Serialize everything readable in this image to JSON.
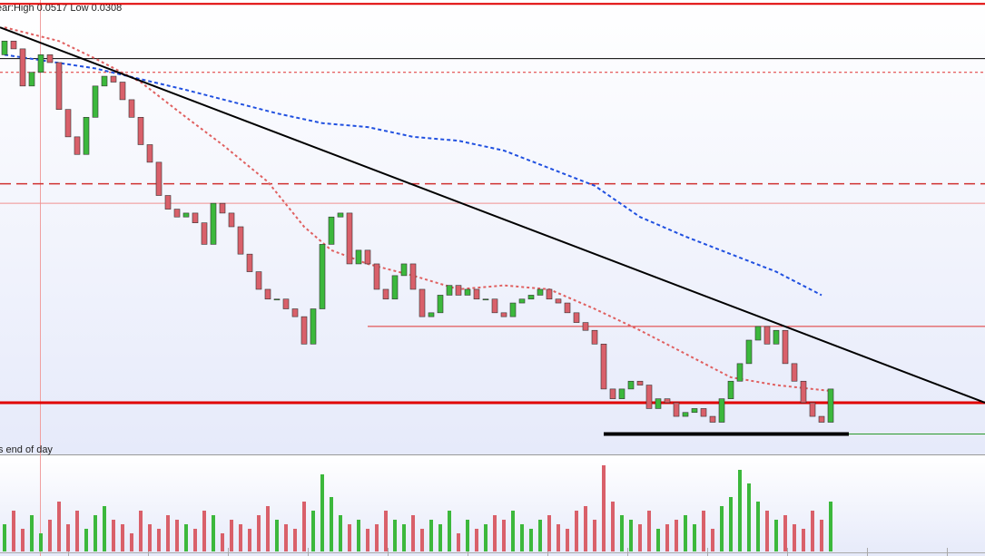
{
  "chart_data": {
    "type": "candlestick",
    "header_text": "ear:High 0.0517 Low 0.0308",
    "footer_text": "s end of day",
    "ylim": [
      0.0298,
      0.053
    ],
    "color_up": "#3cb83c",
    "color_down": "#d9606a",
    "open": [
      0.0502,
      0.0509,
      0.0505,
      0.0486,
      0.0493,
      0.0502,
      0.0498,
      0.0474,
      0.046,
      0.0451,
      0.047,
      0.0486,
      0.0491,
      0.0488,
      0.0479,
      0.047,
      0.0456,
      0.0447,
      0.043,
      0.0423,
      0.0419,
      0.0421,
      0.0416,
      0.0405,
      0.0426,
      0.0421,
      0.0414,
      0.04,
      0.0391,
      0.0382,
      0.0377,
      0.0377,
      0.0372,
      0.0368,
      0.0354,
      0.0372,
      0.0405,
      0.0419,
      0.0421,
      0.0395,
      0.0402,
      0.0395,
      0.0382,
      0.0377,
      0.0389,
      0.0395,
      0.0382,
      0.0368,
      0.037,
      0.0379,
      0.0384,
      0.0379,
      0.0382,
      0.0377,
      0.0377,
      0.037,
      0.0368,
      0.0375,
      0.0377,
      0.0379,
      0.0382,
      0.0377,
      0.0375,
      0.037,
      0.0365,
      0.0361,
      0.0354,
      0.0331,
      0.0326,
      0.0331,
      0.0335,
      0.0333,
      0.0321,
      0.0326,
      0.0324,
      0.0317,
      0.0319,
      0.0321,
      0.0317,
      0.0314,
      0.0326,
      0.0335,
      0.0344,
      0.0356,
      0.0363,
      0.0354,
      0.0361,
      0.0344,
      0.0335,
      0.0324,
      0.0317,
      0.0314
    ],
    "close": [
      0.0509,
      0.0505,
      0.0486,
      0.0493,
      0.0502,
      0.0498,
      0.0474,
      0.046,
      0.0451,
      0.047,
      0.0486,
      0.0491,
      0.0488,
      0.0479,
      0.047,
      0.0456,
      0.0447,
      0.043,
      0.0423,
      0.0419,
      0.0421,
      0.0416,
      0.0405,
      0.0426,
      0.0421,
      0.0414,
      0.04,
      0.0391,
      0.0382,
      0.0377,
      0.0377,
      0.0372,
      0.0368,
      0.0354,
      0.0372,
      0.0405,
      0.0419,
      0.0421,
      0.0395,
      0.0402,
      0.0395,
      0.0382,
      0.0377,
      0.0389,
      0.0395,
      0.0382,
      0.0368,
      0.037,
      0.0379,
      0.0384,
      0.0379,
      0.0382,
      0.0377,
      0.0377,
      0.037,
      0.0368,
      0.0375,
      0.0377,
      0.0379,
      0.0382,
      0.0377,
      0.0375,
      0.037,
      0.0365,
      0.0361,
      0.0354,
      0.0331,
      0.0326,
      0.0331,
      0.0335,
      0.0333,
      0.0321,
      0.0326,
      0.0324,
      0.0317,
      0.0319,
      0.0321,
      0.0317,
      0.0314,
      0.0326,
      0.0335,
      0.0344,
      0.0356,
      0.0363,
      0.0354,
      0.0361,
      0.0344,
      0.0335,
      0.0324,
      0.0317,
      0.0314,
      0.0331
    ],
    "volume": {
      "ylim": [
        0,
        100
      ],
      "values": [
        30,
        45,
        25,
        40,
        20,
        35,
        55,
        30,
        45,
        25,
        40,
        50,
        35,
        30,
        20,
        45,
        30,
        25,
        40,
        35,
        30,
        25,
        45,
        40,
        20,
        35,
        30,
        25,
        40,
        50,
        35,
        30,
        25,
        55,
        45,
        85,
        60,
        40,
        30,
        35,
        25,
        30,
        45,
        35,
        30,
        40,
        25,
        35,
        30,
        45,
        20,
        35,
        25,
        30,
        40,
        35,
        45,
        30,
        25,
        35,
        40,
        30,
        25,
        45,
        50,
        35,
        95,
        55,
        40,
        35,
        30,
        45,
        25,
        30,
        35,
        40,
        30,
        45,
        25,
        50,
        60,
        90,
        75,
        55,
        45,
        35,
        40,
        30,
        25,
        45,
        35,
        55
      ]
    },
    "moving_averages": [
      {
        "color": "#e06060",
        "dash": "3,3",
        "x": [
          0,
          6,
          10,
          15,
          20,
          24,
          29,
          33,
          36,
          40,
          45,
          50,
          55,
          60,
          65,
          70,
          75,
          80,
          85,
          91
        ],
        "values": [
          0.0516,
          0.0509,
          0.05,
          0.0488,
          0.047,
          0.0456,
          0.0437,
          0.0414,
          0.0402,
          0.0395,
          0.0389,
          0.0382,
          0.0384,
          0.0382,
          0.0372,
          0.0361,
          0.0349,
          0.0337,
          0.0333,
          0.033
        ]
      },
      {
        "color": "#2050e0",
        "dash": "4,3",
        "x": [
          0,
          10,
          20,
          30,
          35,
          40,
          45,
          50,
          55,
          60,
          65,
          70,
          75,
          80,
          85,
          90
        ],
        "values": [
          0.0502,
          0.0495,
          0.0484,
          0.0472,
          0.0467,
          0.0465,
          0.046,
          0.0458,
          0.0453,
          0.0444,
          0.0435,
          0.0419,
          0.0409,
          0.04,
          0.0391,
          0.0379
        ]
      }
    ],
    "trendline": {
      "color": "#000000",
      "x": [
        0,
        108
      ],
      "values": [
        0.0516,
        0.0324
      ]
    },
    "levels": [
      {
        "value": 0.0528,
        "color": "#e00000",
        "width": 2
      },
      {
        "value": 0.05,
        "color": "#000000",
        "width": 1
      },
      {
        "value": 0.0493,
        "color": "#e03030",
        "width": 1,
        "dash": "3,3"
      },
      {
        "value": 0.0436,
        "color": "#d03030",
        "width": 1.5,
        "dash": "12,6"
      },
      {
        "value": 0.0426,
        "color": "#f09090",
        "width": 1
      },
      {
        "value": 0.0363,
        "color": "#e03030",
        "width": 1,
        "x": [
          40,
          108
        ]
      },
      {
        "value": 0.0324,
        "color": "#e00000",
        "width": 3
      },
      {
        "value": 0.0308,
        "color": "#000000",
        "width": 4,
        "x": [
          66,
          93
        ]
      },
      {
        "value": 0.0308,
        "color": "#2a9a2a",
        "width": 1,
        "x": [
          93,
          108
        ]
      }
    ]
  }
}
